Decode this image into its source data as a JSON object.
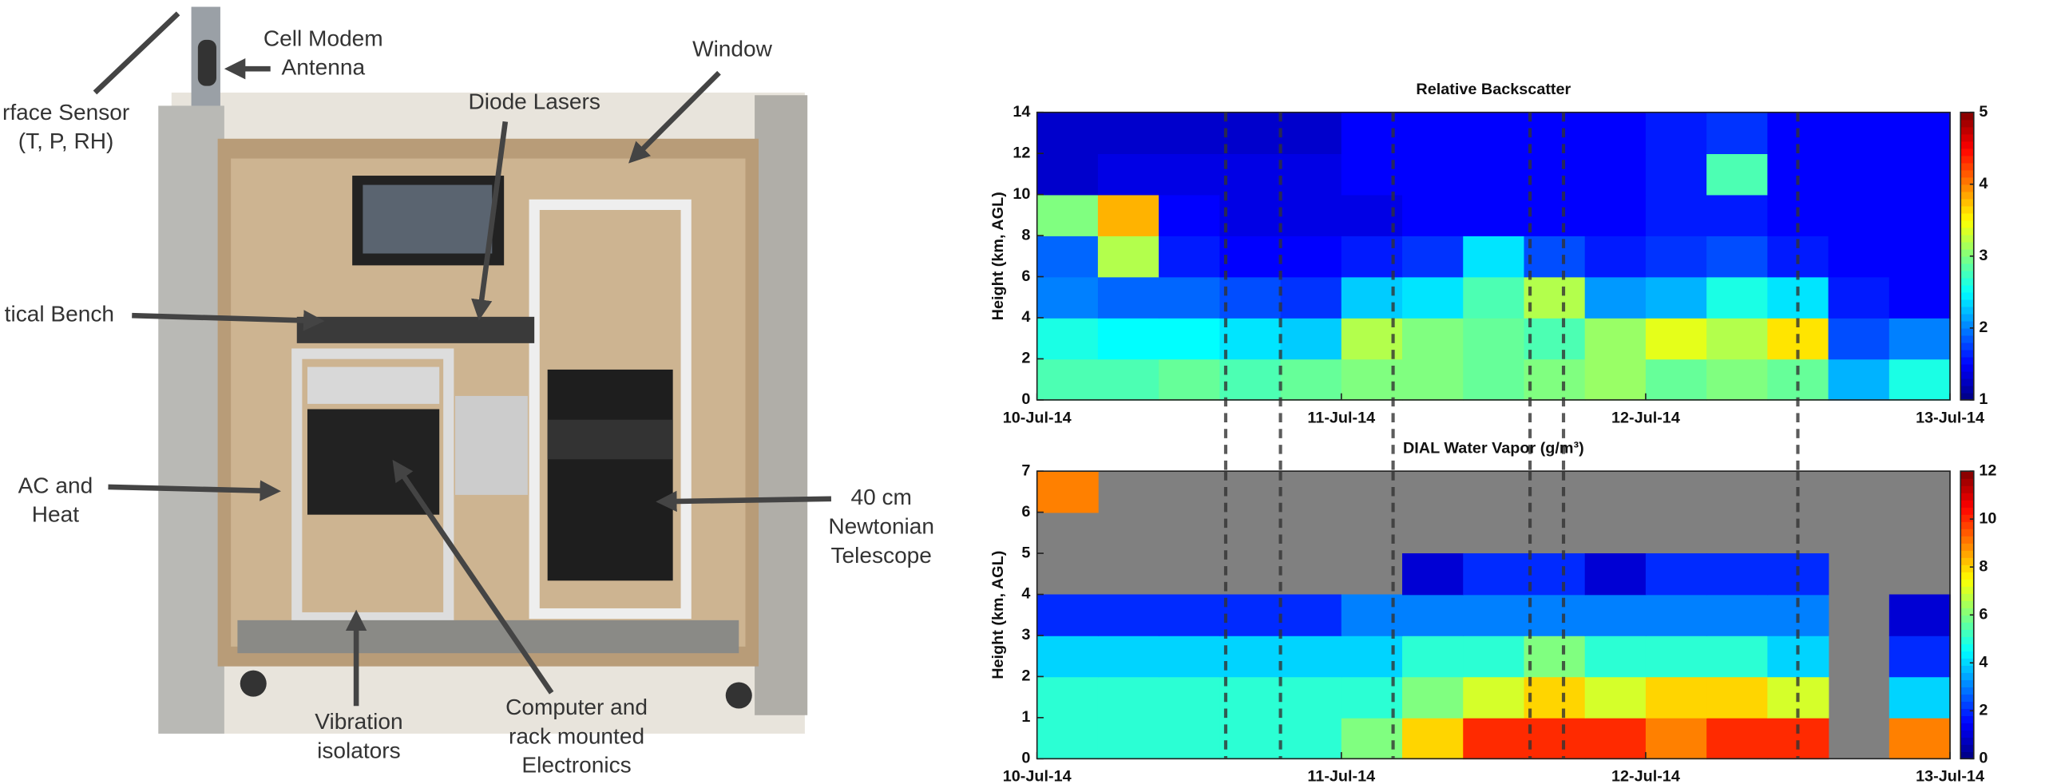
{
  "photo": {
    "labels": [
      {
        "lines": [
          "Cell Modem",
          "Antenna"
        ]
      },
      {
        "lines": [
          "Window"
        ]
      },
      {
        "lines": [
          "rface Sensor",
          "(T, P, RH)"
        ]
      },
      {
        "lines": [
          "Diode Lasers"
        ]
      },
      {
        "lines": [
          "tical Bench"
        ]
      },
      {
        "lines": [
          "AC and",
          "Heat"
        ]
      },
      {
        "lines": [
          "40 cm",
          "Newtonian",
          "Telescope"
        ]
      },
      {
        "lines": [
          "Vibration",
          "isolators"
        ]
      },
      {
        "lines": [
          "Computer and",
          "rack mounted",
          "Electronics"
        ]
      }
    ]
  },
  "chart_data": [
    {
      "type": "heatmap",
      "title": "Relative Backscatter",
      "y_label": "Height (km, AGL)",
      "xlim": [
        0,
        3
      ],
      "xticks": [
        {
          "value": 0,
          "label": "10-Jul-14"
        },
        {
          "value": 1,
          "label": "11-Jul-14"
        },
        {
          "value": 2,
          "label": "12-Jul-14"
        },
        {
          "value": 3,
          "label": "13-Jul-14"
        }
      ],
      "ylim": [
        0,
        14
      ],
      "yticks": [
        0,
        2,
        4,
        6,
        8,
        10,
        12,
        14
      ],
      "clim": [
        1,
        5
      ],
      "cticks": [
        1,
        2,
        3,
        4,
        5
      ],
      "colormap": "jet",
      "dashed_lines": [
        0.62,
        0.8,
        1.17,
        1.62,
        1.73,
        2.5
      ],
      "x_bins": [
        0,
        0.2,
        0.4,
        0.6,
        0.8,
        1,
        1.2,
        1.4,
        1.6,
        1.8,
        2,
        2.2,
        2.4,
        2.6,
        2.8,
        3
      ],
      "y_bins": [
        0,
        2,
        4,
        6,
        8,
        10,
        12,
        14
      ],
      "z": [
        [
          2.8,
          2.8,
          2.9,
          2.8,
          2.9,
          3.0,
          3.0,
          2.9,
          3.0,
          3.1,
          2.9,
          3.0,
          2.9,
          2.2,
          2.6
        ],
        [
          2.6,
          2.5,
          2.5,
          2.4,
          2.3,
          3.2,
          3.0,
          2.9,
          2.8,
          3.1,
          3.4,
          3.2,
          3.6,
          1.8,
          2.0
        ],
        [
          2.0,
          1.9,
          1.9,
          1.8,
          1.7,
          2.3,
          2.4,
          2.8,
          3.2,
          2.1,
          2.2,
          2.6,
          2.4,
          1.6,
          1.5
        ],
        [
          1.9,
          3.2,
          1.6,
          1.5,
          1.5,
          1.6,
          1.7,
          2.4,
          1.8,
          1.6,
          1.7,
          1.8,
          1.6,
          1.5,
          1.5
        ],
        [
          3.0,
          3.8,
          1.5,
          1.4,
          1.4,
          1.4,
          1.5,
          1.5,
          1.5,
          1.5,
          1.6,
          1.6,
          1.5,
          1.5,
          1.5
        ],
        [
          1.3,
          1.4,
          1.4,
          1.4,
          1.4,
          1.5,
          1.5,
          1.5,
          1.5,
          1.5,
          1.6,
          2.8,
          1.5,
          1.5,
          1.5
        ],
        [
          1.3,
          1.3,
          1.3,
          1.3,
          1.3,
          1.5,
          1.5,
          1.5,
          1.5,
          1.5,
          1.6,
          1.7,
          1.5,
          1.5,
          1.5
        ]
      ]
    },
    {
      "type": "heatmap",
      "title": "DIAL Water Vapor (g/m³)",
      "y_label": "Height (km, AGL)",
      "xlim": [
        0,
        3
      ],
      "xticks": [
        {
          "value": 0,
          "label": "10-Jul-14"
        },
        {
          "value": 1,
          "label": "11-Jul-14"
        },
        {
          "value": 2,
          "label": "12-Jul-14"
        },
        {
          "value": 3,
          "label": "13-Jul-14"
        }
      ],
      "ylim": [
        0,
        7
      ],
      "yticks": [
        0,
        1,
        2,
        3,
        4,
        5,
        6,
        7
      ],
      "clim": [
        0,
        12
      ],
      "cticks": [
        0,
        2,
        4,
        6,
        8,
        10,
        12
      ],
      "colormap": "jet",
      "dashed_lines": [
        0.62,
        0.8,
        1.17,
        1.62,
        1.73,
        2.5
      ],
      "x_bins": [
        0,
        0.2,
        0.4,
        0.6,
        0.8,
        1,
        1.2,
        1.4,
        1.6,
        1.8,
        2,
        2.2,
        2.4,
        2.6,
        2.8,
        3
      ],
      "y_bins": [
        0,
        1,
        2,
        3,
        4,
        5,
        6,
        7
      ],
      "z": [
        [
          5,
          5,
          5,
          5,
          5,
          6,
          8,
          10,
          10,
          10,
          9,
          10,
          10,
          null,
          9
        ],
        [
          5,
          5,
          5,
          5,
          5,
          5,
          6,
          7,
          8,
          7,
          8,
          8,
          7,
          null,
          4
        ],
        [
          4,
          4,
          4,
          4,
          4,
          4,
          5,
          5,
          6,
          5,
          5,
          5,
          4,
          null,
          2
        ],
        [
          2,
          2,
          2,
          2,
          2,
          3,
          3,
          3,
          3,
          3,
          3,
          3,
          3,
          null,
          1
        ],
        [
          null,
          null,
          null,
          null,
          null,
          null,
          1,
          2,
          2,
          1,
          2,
          2,
          2,
          null,
          null
        ],
        [
          null,
          null,
          null,
          null,
          null,
          null,
          null,
          null,
          null,
          null,
          null,
          null,
          null,
          null,
          null
        ],
        [
          9,
          null,
          null,
          null,
          null,
          null,
          null,
          null,
          null,
          null,
          null,
          null,
          null,
          null,
          null
        ]
      ]
    }
  ]
}
